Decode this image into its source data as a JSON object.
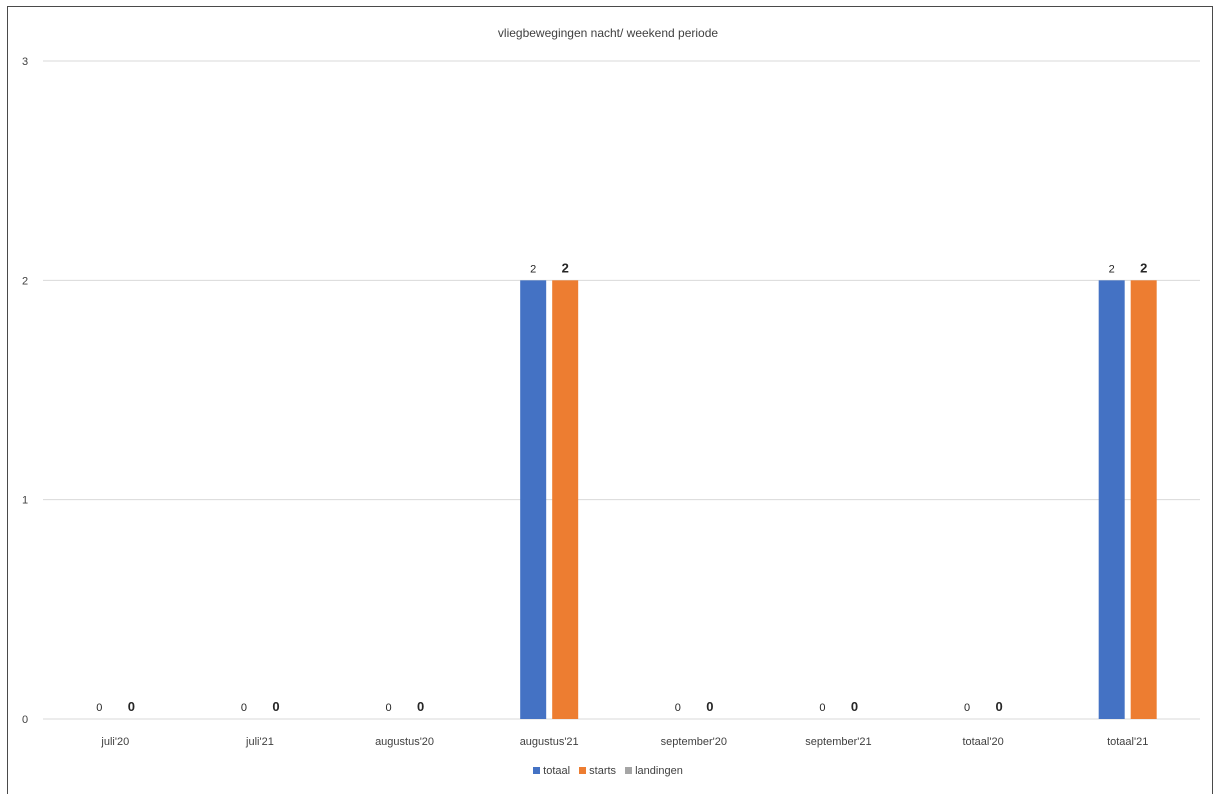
{
  "chart_data": {
    "type": "bar",
    "title": "vliegbewegingen nacht/ weekend periode",
    "categories": [
      "juli'20",
      "juli'21",
      "augustus'20",
      "augustus'21",
      "september'20",
      "september'21",
      "totaal'20",
      "totaal'21"
    ],
    "series": [
      {
        "name": "totaal",
        "values": [
          0,
          0,
          0,
          2,
          0,
          0,
          0,
          2
        ]
      },
      {
        "name": "starts",
        "values": [
          0,
          0,
          0,
          2,
          0,
          0,
          0,
          2
        ]
      },
      {
        "name": "landingen",
        "values": [
          null,
          null,
          null,
          null,
          null,
          null,
          null,
          null
        ]
      }
    ],
    "ylim": [
      0,
      3
    ],
    "yticks": [
      "0",
      "1",
      "2",
      "3"
    ],
    "xlabel": "",
    "ylabel": "",
    "grid": true,
    "legend_position": "bottom",
    "colors": {
      "totaal": "#4472c4",
      "starts": "#ed7d31",
      "landingen": "#a5a5a5",
      "grid": "#d9d9d9",
      "text": "#404040"
    }
  }
}
